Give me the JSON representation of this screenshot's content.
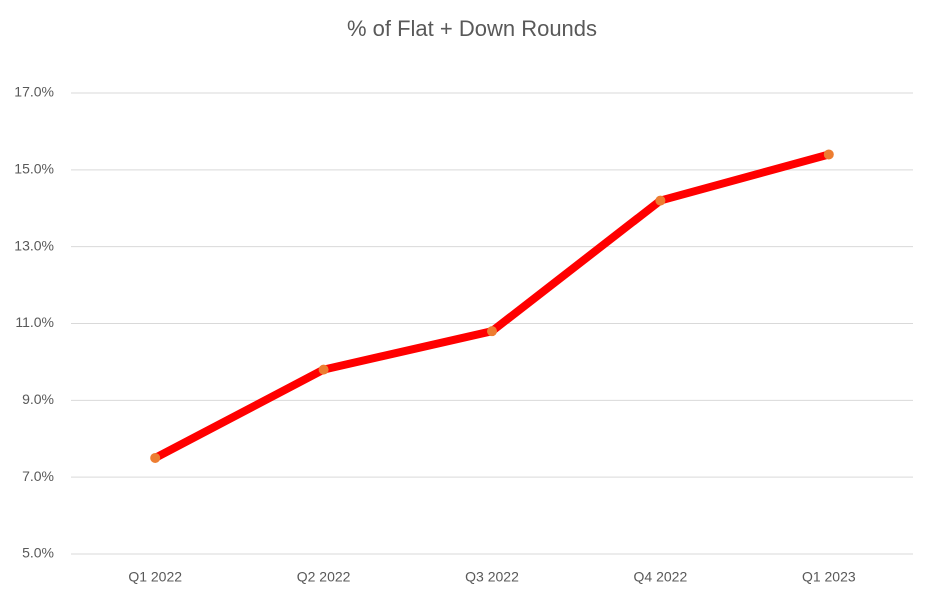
{
  "chart_data": {
    "type": "line",
    "title": "% of Flat + Down Rounds",
    "categories": [
      "Q1 2022",
      "Q2 2022",
      "Q3 2022",
      "Q4 2022",
      "Q1 2023"
    ],
    "values": [
      7.5,
      9.8,
      10.8,
      14.2,
      15.4
    ],
    "color": "#ff0000",
    "marker_color": "#ed7d31",
    "ylim": [
      5,
      17
    ],
    "yticks": [
      {
        "value": 5,
        "label": "5.0%"
      },
      {
        "value": 7,
        "label": "7.0%"
      },
      {
        "value": 9,
        "label": "9.0%"
      },
      {
        "value": 11,
        "label": "11.0%"
      },
      {
        "value": 13,
        "label": "13.0%"
      },
      {
        "value": 15,
        "label": "15.0%"
      },
      {
        "value": 17,
        "label": "17.0%"
      }
    ],
    "grid": true
  }
}
